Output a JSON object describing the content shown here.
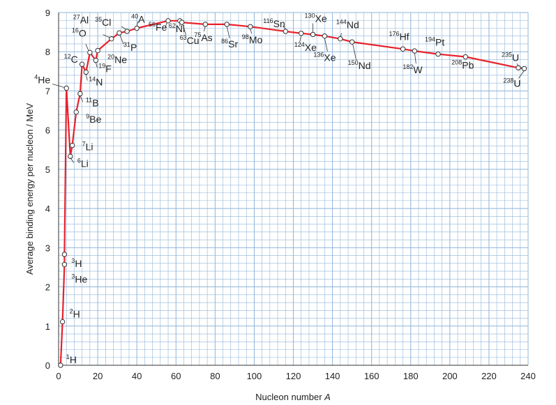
{
  "chart_data": {
    "type": "line",
    "title": "",
    "xlabel": "Nucleon number A",
    "ylabel": "Average binding energy per nucleon / MeV",
    "xlim": [
      0,
      240
    ],
    "ylim": [
      0,
      9
    ],
    "xticks": [
      0,
      20,
      40,
      60,
      80,
      100,
      120,
      140,
      160,
      180,
      200,
      220,
      240
    ],
    "yticks": [
      0,
      1,
      2,
      3,
      4,
      5,
      6,
      7,
      8,
      9
    ],
    "grid": true,
    "line_color": "#e8212b",
    "grid_color": "#8fb4d9",
    "series": [
      {
        "name": "",
        "points": [
          {
            "A": 1,
            "E": 0.0,
            "mass": "1",
            "sym": "H"
          },
          {
            "A": 2,
            "E": 1.11,
            "mass": "2",
            "sym": "H"
          },
          {
            "A": 3,
            "E": 2.57,
            "mass": "3",
            "sym": "He"
          },
          {
            "A": 3,
            "E": 2.83,
            "mass": "3",
            "sym": "H"
          },
          {
            "A": 4,
            "E": 7.07,
            "mass": "4",
            "sym": "He"
          },
          {
            "A": 6,
            "E": 5.33,
            "mass": "6",
            "sym": "Li"
          },
          {
            "A": 7,
            "E": 5.61,
            "mass": "7",
            "sym": "Li"
          },
          {
            "A": 9,
            "E": 6.46,
            "mass": "9",
            "sym": "Be"
          },
          {
            "A": 11,
            "E": 6.93,
            "mass": "11",
            "sym": "B"
          },
          {
            "A": 12,
            "E": 7.68,
            "mass": "12",
            "sym": "C"
          },
          {
            "A": 14,
            "E": 7.48,
            "mass": "14",
            "sym": "N"
          },
          {
            "A": 16,
            "E": 7.98,
            "mass": "16",
            "sym": "O"
          },
          {
            "A": 19,
            "E": 7.78,
            "mass": "19",
            "sym": "F"
          },
          {
            "A": 20,
            "E": 8.03,
            "mass": "20",
            "sym": "Ne"
          },
          {
            "A": 27,
            "E": 8.33,
            "mass": "27",
            "sym": "Al"
          },
          {
            "A": 31,
            "E": 8.48,
            "mass": "31",
            "sym": "P"
          },
          {
            "A": 35,
            "E": 8.52,
            "mass": "35",
            "sym": "Cl"
          },
          {
            "A": 40,
            "E": 8.6,
            "mass": "40",
            "sym": "A"
          },
          {
            "A": 56,
            "E": 8.79,
            "mass": "56",
            "sym": "Fe"
          },
          {
            "A": 62,
            "E": 8.79,
            "mass": "62",
            "sym": "Ni"
          },
          {
            "A": 63,
            "E": 8.75,
            "mass": "63",
            "sym": "Cu"
          },
          {
            "A": 75,
            "E": 8.7,
            "mass": "75",
            "sym": "As"
          },
          {
            "A": 86,
            "E": 8.7,
            "mass": "86",
            "sym": "Sr"
          },
          {
            "A": 98,
            "E": 8.64,
            "mass": "98",
            "sym": "Mo"
          },
          {
            "A": 116,
            "E": 8.52,
            "mass": "116",
            "sym": "Sn"
          },
          {
            "A": 124,
            "E": 8.47,
            "mass": "124",
            "sym": "Xe"
          },
          {
            "A": 130,
            "E": 8.44,
            "mass": "130",
            "sym": "Xe"
          },
          {
            "A": 136,
            "E": 8.4,
            "mass": "136",
            "sym": "Xe"
          },
          {
            "A": 144,
            "E": 8.33,
            "mass": "144",
            "sym": "Nd"
          },
          {
            "A": 150,
            "E": 8.25,
            "mass": "150",
            "sym": "Nd"
          },
          {
            "A": 176,
            "E": 8.07,
            "mass": "176",
            "sym": "Hf"
          },
          {
            "A": 182,
            "E": 8.02,
            "mass": "182",
            "sym": "W"
          },
          {
            "A": 194,
            "E": 7.94,
            "mass": "194",
            "sym": "Pt"
          },
          {
            "A": 208,
            "E": 7.87,
            "mass": "208",
            "sym": "Pb"
          },
          {
            "A": 235,
            "E": 7.59,
            "mass": "235",
            "sym": "U"
          },
          {
            "A": 238,
            "E": 7.57,
            "mass": "238",
            "sym": "U"
          }
        ]
      }
    ]
  }
}
